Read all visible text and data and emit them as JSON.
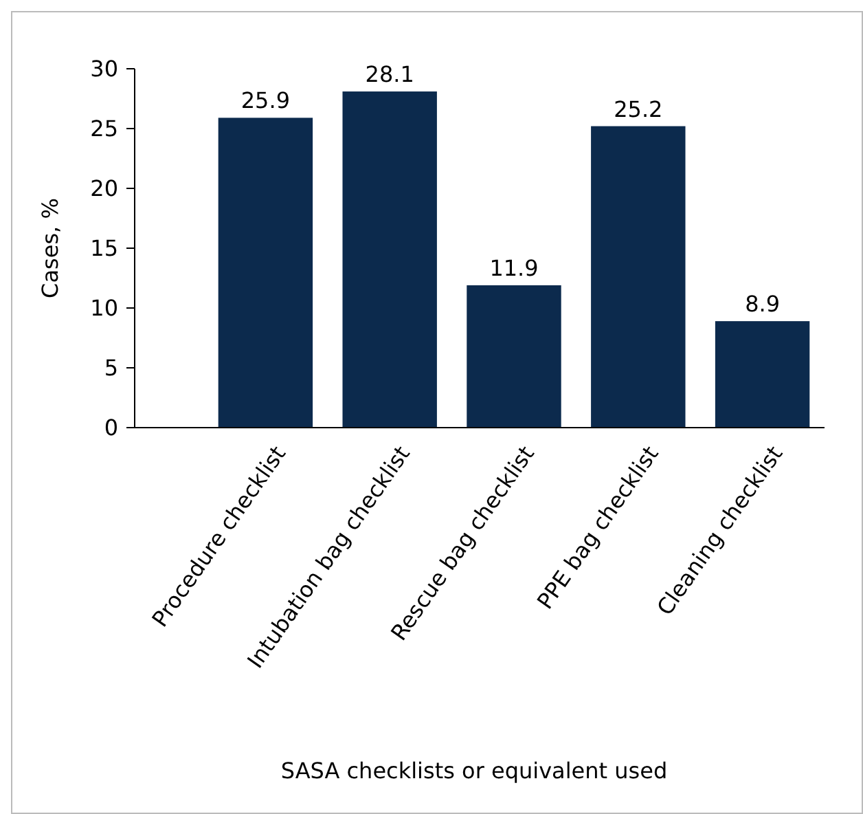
{
  "chart_data": {
    "type": "bar",
    "xlabel": "SASA checklists or equivalent used",
    "ylabel": "Cases, %",
    "categories": [
      "Procedure checklist",
      "Intubation bag checklist",
      "Rescue bag checklist",
      "PPE bag checklist",
      "Cleaning checklist"
    ],
    "values": [
      25.9,
      28.1,
      11.9,
      25.2,
      8.9
    ],
    "color": "#0c2a4d",
    "ylim": [
      0,
      30
    ],
    "yticks": [
      0,
      5,
      10,
      15,
      20,
      25,
      30
    ],
    "grid": false,
    "data_labels": true
  }
}
